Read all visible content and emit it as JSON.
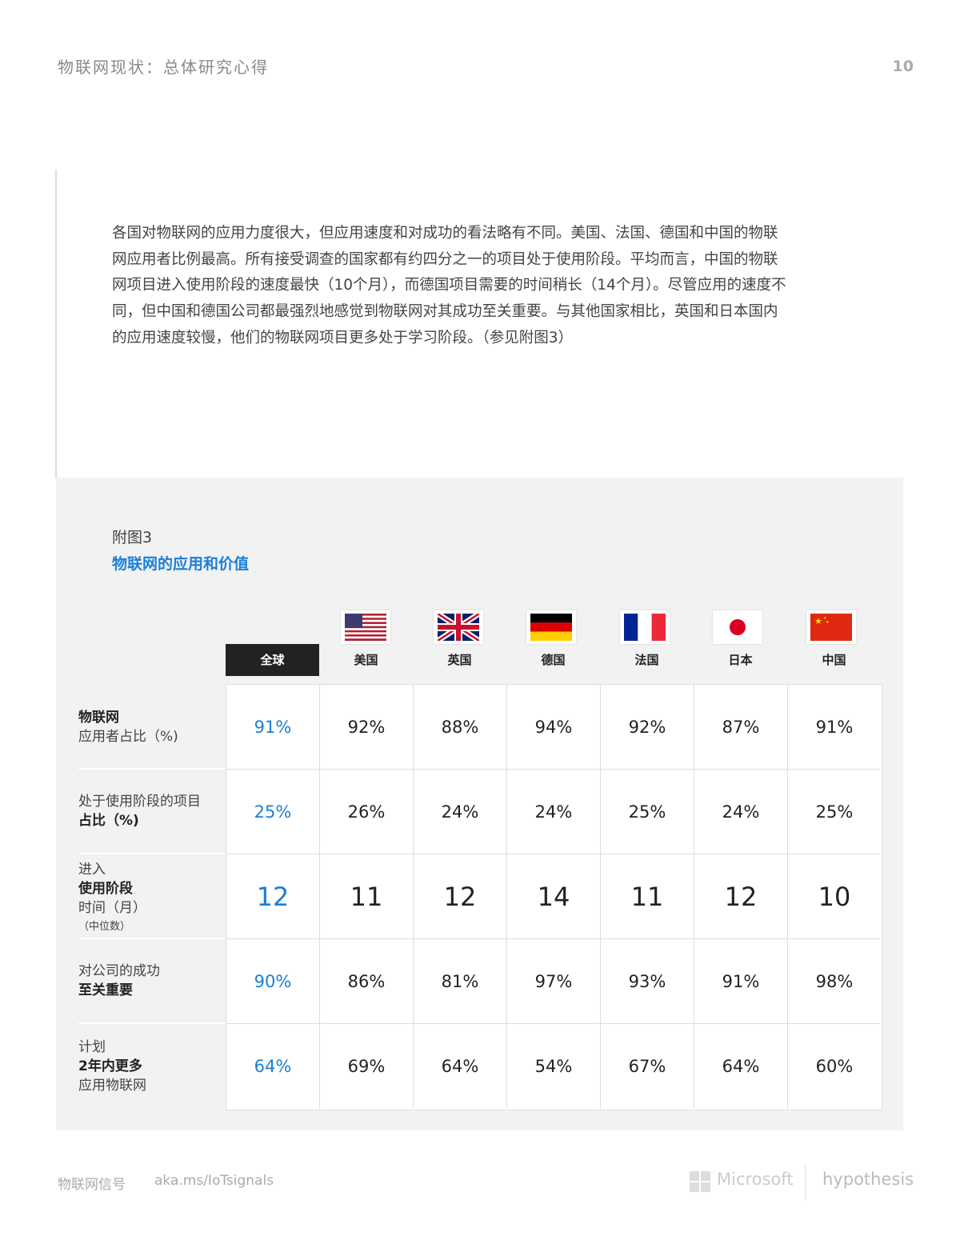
{
  "header": {
    "title": "物联网现状：总体研究心得",
    "page_number": "10"
  },
  "intro_paragraph": "各国对物联网的应用力度很大，但应用速度和对成功的看法略有不同。美国、法国、德国和中国的物联网应用者比例最高。所有接受调查的国家都有约四分之一的项目处于使用阶段。平均而言，中国的物联网项目进入使用阶段的速度最快（10个月），而德国项目需要的时间稍长（14个月）。尽管应用的速度不同，但中国和德国公司都最强烈地感觉到物联网对其成功至关重要。与其他国家相比，英国和日本国内的应用速度较慢，他们的物联网项目更多处于学习阶段。（参见附图3）",
  "figure": {
    "label": "附图3",
    "title": "物联网的应用和价值",
    "columns": [
      {
        "label": "全球",
        "flag": null
      },
      {
        "label": "美国",
        "flag": "us-flag"
      },
      {
        "label": "英国",
        "flag": "uk-flag"
      },
      {
        "label": "德国",
        "flag": "germany-flag"
      },
      {
        "label": "法国",
        "flag": "france-flag"
      },
      {
        "label": "日本",
        "flag": "japan-flag"
      },
      {
        "label": "中国",
        "flag": "china-flag"
      }
    ],
    "rows": [
      {
        "label_lines": [
          "物联网",
          "应用者占比（%)"
        ],
        "values": [
          "91%",
          "92%",
          "88%",
          "94%",
          "92%",
          "87%",
          "91%"
        ]
      },
      {
        "label_lines": [
          "处于使用阶段的项目",
          "占比（%)"
        ],
        "values": [
          "25%",
          "26%",
          "24%",
          "24%",
          "25%",
          "24%",
          "25%"
        ]
      },
      {
        "label_lines": [
          "进入",
          "使用阶段",
          "时间（月）",
          "（中位数）"
        ],
        "values": [
          "12",
          "11",
          "12",
          "14",
          "11",
          "12",
          "10"
        ]
      },
      {
        "label_lines": [
          "对公司的成功",
          "至关重要"
        ],
        "values": [
          "90%",
          "86%",
          "81%",
          "97%",
          "93%",
          "91%",
          "98%"
        ]
      },
      {
        "label_lines": [
          "计划",
          "2年内更多",
          "应用物联网"
        ],
        "values": [
          "64%",
          "69%",
          "64%",
          "54%",
          "67%",
          "64%",
          "60%"
        ]
      }
    ],
    "accent_color": "#1a7fd8"
  },
  "footer": {
    "left_label": "物联网信号",
    "url": "aka.ms/IoTsignals",
    "logo_microsoft": "Microsoft",
    "logo_hypothesis": "hypothesis"
  }
}
